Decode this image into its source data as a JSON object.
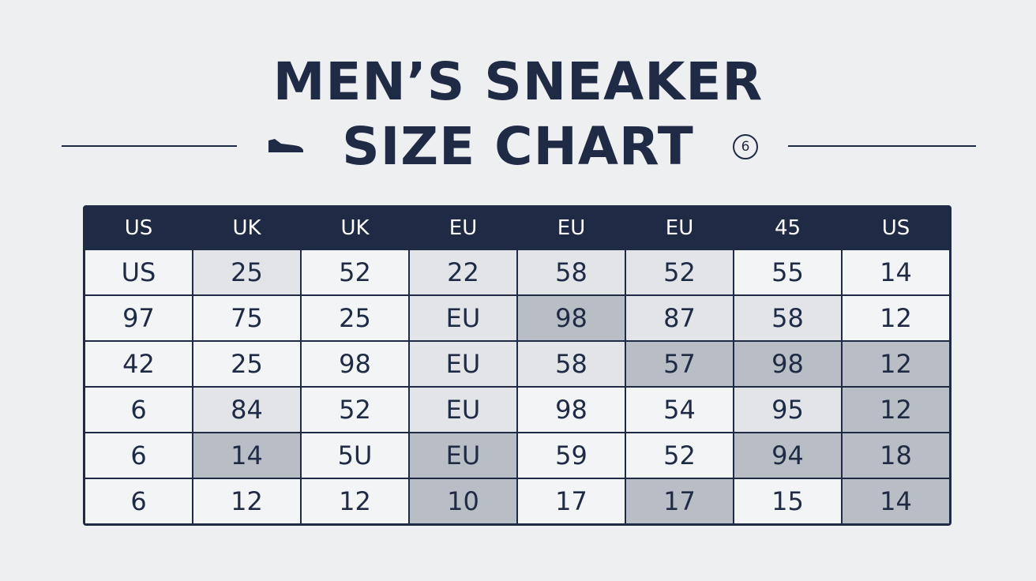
{
  "header": {
    "title_line1": "MEN’S SNEAKER",
    "title_line2": "SIZE CHART",
    "badge": "6"
  },
  "table": {
    "header": [
      "US",
      "UK",
      "UK",
      "EU",
      "EU",
      "EU",
      "45",
      "US"
    ],
    "rows": [
      [
        "US",
        "25",
        "52",
        "22",
        "58",
        "52",
        "55",
        "14"
      ],
      [
        "97",
        "75",
        "25",
        "EU",
        "98",
        "87",
        "58",
        "12"
      ],
      [
        "42",
        "25",
        "98",
        "EU",
        "58",
        "57",
        "98",
        "12"
      ],
      [
        "6",
        "84",
        "52",
        "EU",
        "98",
        "54",
        "95",
        "12"
      ],
      [
        "6",
        "14",
        "5U",
        "EU",
        "59",
        "52",
        "94",
        "18"
      ],
      [
        "6",
        "12",
        "12",
        "10",
        "17",
        "17",
        "15",
        "14"
      ]
    ],
    "cell_colors": [
      [
        "#f3f4f6",
        "#e2e4e8",
        "#f3f4f6",
        "#e2e4e8",
        "#e2e4e8",
        "#e2e4e8",
        "#f3f4f6",
        "#f3f4f6"
      ],
      [
        "#f3f4f6",
        "#f3f4f6",
        "#f3f4f6",
        "#e2e4e8",
        "#b9bec6",
        "#e2e4e8",
        "#e2e4e8",
        "#f3f4f6"
      ],
      [
        "#f3f4f6",
        "#f3f4f6",
        "#f3f4f6",
        "#e2e4e8",
        "#e2e4e8",
        "#b9bec6",
        "#b9bec6",
        "#b9bec6"
      ],
      [
        "#f3f4f6",
        "#e2e4e8",
        "#f3f4f6",
        "#e2e4e8",
        "#f3f4f6",
        "#f3f4f6",
        "#e2e4e8",
        "#b9bec6"
      ],
      [
        "#f3f4f6",
        "#b9bec6",
        "#f3f4f6",
        "#b9bec6",
        "#f3f4f6",
        "#f3f4f6",
        "#b9bec6",
        "#b9bec6"
      ],
      [
        "#f3f4f6",
        "#f3f4f6",
        "#f3f4f6",
        "#b9bec6",
        "#f3f4f6",
        "#b9bec6",
        "#f3f4f6",
        "#b9bec6"
      ]
    ]
  }
}
